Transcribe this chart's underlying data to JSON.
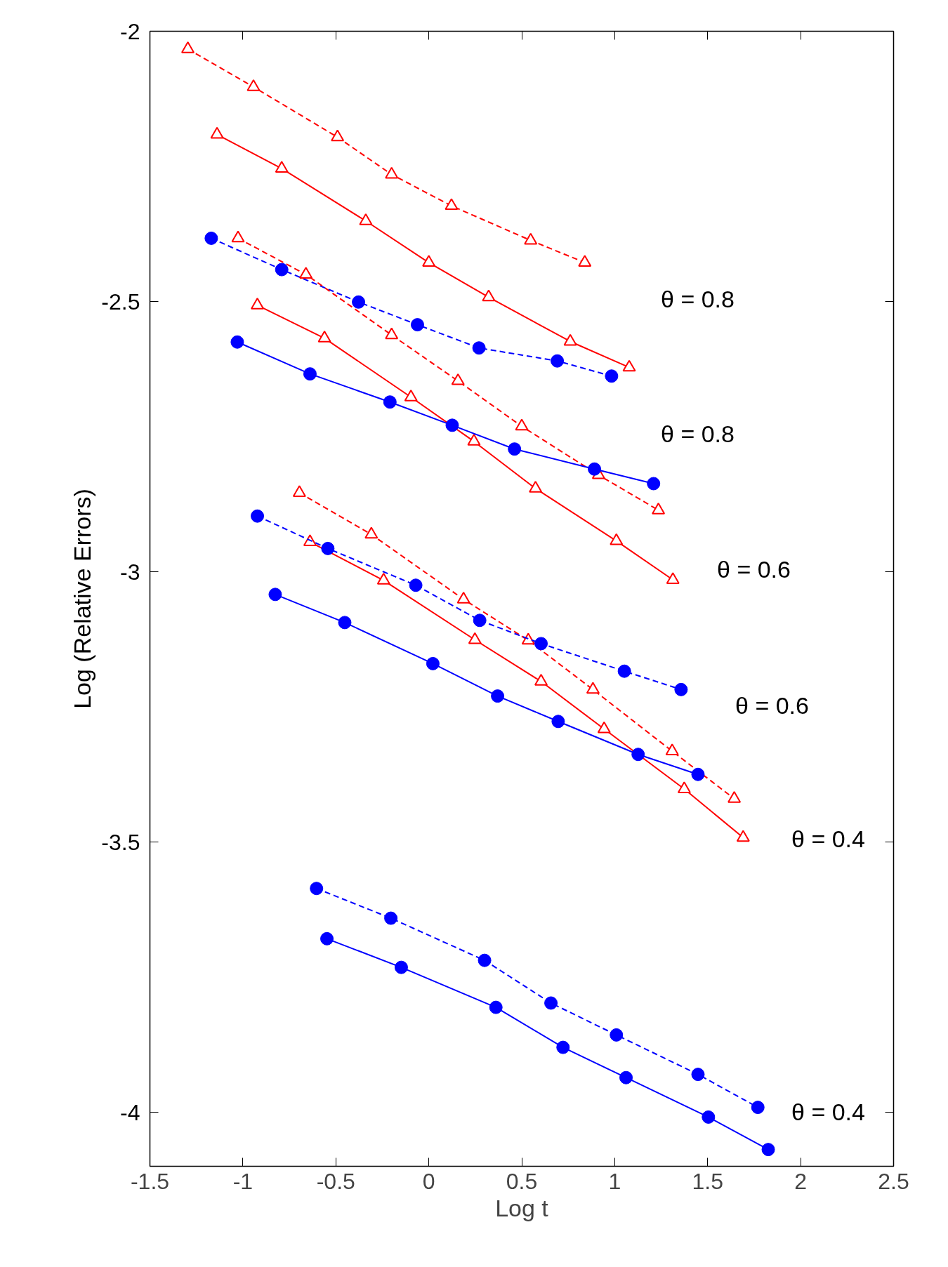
{
  "chart_data": {
    "type": "line",
    "xlabel": "Log t",
    "ylabel": "Log (Relative Errors)",
    "xlim": [
      -1.5,
      2.5
    ],
    "ylim": [
      -4.1,
      -2
    ],
    "xticks": [
      -1.5,
      -1,
      -0.5,
      0,
      0.5,
      1,
      1.5,
      2,
      2.5
    ],
    "yticks": [
      -4,
      -3.5,
      -3,
      -2.5,
      -2
    ],
    "grid": false,
    "series": [
      {
        "color": "#ff0000",
        "marker": "triangle",
        "line_style": "dashed",
        "x": [
          -1.296,
          -0.943,
          -0.491,
          -0.2,
          0.122,
          0.548,
          0.839
        ],
        "values": [
          -2.033,
          -2.103,
          -2.196,
          -2.265,
          -2.323,
          -2.387,
          -2.428
        ]
      },
      {
        "color": "#ff0000",
        "marker": "triangle",
        "line_style": "solid",
        "x": [
          -1.139,
          -0.791,
          -0.339,
          0.0,
          0.322,
          0.761,
          1.078
        ],
        "values": [
          -2.191,
          -2.254,
          -2.351,
          -2.428,
          -2.492,
          -2.574,
          -2.622
        ]
      },
      {
        "color": "#0000ff",
        "marker": "circle",
        "line_style": "dashed",
        "x": [
          -1.17,
          -0.791,
          -0.378,
          -0.061,
          0.27,
          0.691,
          0.983
        ],
        "values": [
          -2.383,
          -2.441,
          -2.501,
          -2.543,
          -2.586,
          -2.61,
          -2.638
        ]
      },
      {
        "color": "#ff0000",
        "marker": "triangle",
        "line_style": "dashed",
        "x": [
          -1.026,
          -0.661,
          -0.2,
          0.157,
          0.5,
          0.913,
          1.235
        ],
        "values": [
          -2.383,
          -2.45,
          -2.562,
          -2.647,
          -2.731,
          -2.821,
          -2.886
        ]
      },
      {
        "color": "#ff0000",
        "marker": "triangle",
        "line_style": "solid",
        "x": [
          -0.922,
          -0.561,
          -0.096,
          0.243,
          0.574,
          1.009,
          1.313
        ],
        "values": [
          -2.507,
          -2.568,
          -2.677,
          -2.759,
          -2.846,
          -2.943,
          -3.015
        ]
      },
      {
        "color": "#0000ff",
        "marker": "circle",
        "line_style": "solid",
        "x": [
          -1.03,
          -0.639,
          -0.209,
          0.126,
          0.461,
          0.891,
          1.209
        ],
        "values": [
          -2.575,
          -2.634,
          -2.686,
          -2.729,
          -2.773,
          -2.81,
          -2.837
        ]
      },
      {
        "color": "#ff0000",
        "marker": "triangle",
        "line_style": "dashed",
        "x": [
          -0.696,
          -0.309,
          0.187,
          0.535,
          0.883,
          1.309,
          1.643
        ],
        "values": [
          -2.854,
          -2.931,
          -3.051,
          -3.127,
          -3.218,
          -3.332,
          -3.42
        ]
      },
      {
        "color": "#ff0000",
        "marker": "triangle",
        "line_style": "solid",
        "x": [
          -0.639,
          -0.243,
          0.248,
          0.604,
          0.943,
          1.374,
          1.691
        ],
        "values": [
          -2.945,
          -3.016,
          -3.126,
          -3.203,
          -3.291,
          -3.402,
          -3.492
        ]
      },
      {
        "color": "#0000ff",
        "marker": "circle",
        "line_style": "dashed",
        "x": [
          -0.922,
          -0.543,
          -0.07,
          0.274,
          0.604,
          1.052,
          1.357
        ],
        "values": [
          -2.897,
          -2.957,
          -3.025,
          -3.09,
          -3.133,
          -3.184,
          -3.218
        ]
      },
      {
        "color": "#0000ff",
        "marker": "circle",
        "line_style": "solid",
        "x": [
          -0.826,
          -0.452,
          0.022,
          0.37,
          0.696,
          1.126,
          1.448
        ],
        "values": [
          -3.042,
          -3.094,
          -3.17,
          -3.23,
          -3.277,
          -3.338,
          -3.375
        ]
      },
      {
        "color": "#0000ff",
        "marker": "circle",
        "line_style": "dashed",
        "x": [
          -0.604,
          -0.204,
          0.3,
          0.657,
          1.009,
          1.448,
          1.77
        ],
        "values": [
          -3.586,
          -3.641,
          -3.719,
          -3.798,
          -3.857,
          -3.93,
          -3.991
        ]
      },
      {
        "color": "#0000ff",
        "marker": "circle",
        "line_style": "solid",
        "x": [
          -0.548,
          -0.148,
          0.361,
          0.722,
          1.061,
          1.504,
          1.826
        ],
        "values": [
          -3.679,
          -3.732,
          -3.806,
          -3.88,
          -3.936,
          -4.009,
          -4.069
        ]
      }
    ],
    "annotations": [
      "θ = 0.8",
      "θ = 0.8",
      "θ = 0.6",
      "θ = 0.6",
      "θ = 0.4",
      "θ = 0.4"
    ]
  }
}
